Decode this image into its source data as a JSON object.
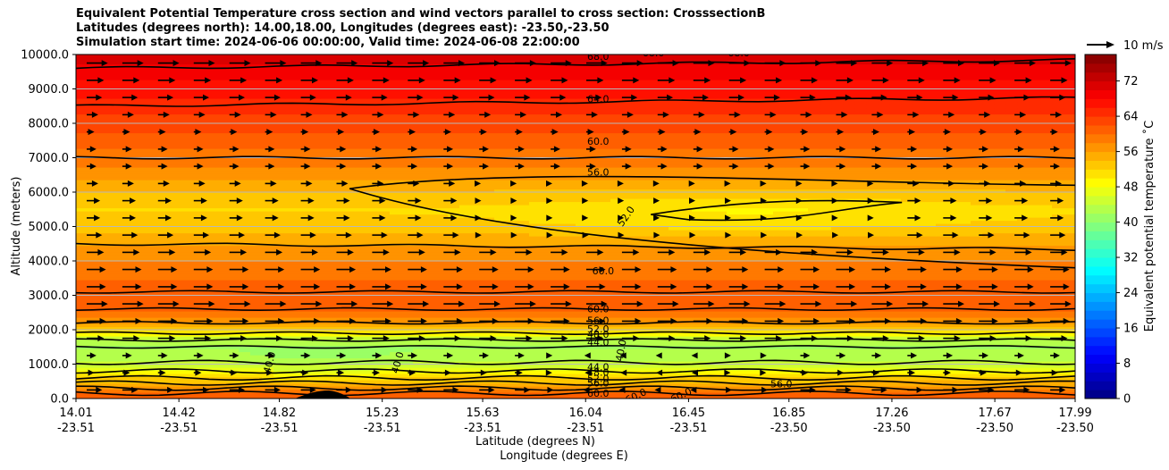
{
  "chart_data": {
    "type": "heatmap",
    "title_lines": [
      "Equivalent Potential Temperature cross section and wind vectors parallel to cross section: CrosssectionB",
      "Latitudes (degrees north): 14.00,18.00, Longitudes (degrees east): -23.50,-23.50",
      "Simulation start time: 2024-06-06 00:00:00, Valid time: 2024-06-08 22:00:00"
    ],
    "ylabel": "Altitude (meters)",
    "xlabel": "Latitude (degrees N)",
    "xlabel2": "Longitude (degrees E)",
    "ylim": [
      0,
      10000
    ],
    "yticks": [
      "0.0",
      "1000.0",
      "2000.0",
      "3000.0",
      "4000.0",
      "5000.0",
      "6000.0",
      "7000.0",
      "8000.0",
      "9000.0",
      "10000.0"
    ],
    "ytick_values": [
      0,
      1000,
      2000,
      3000,
      4000,
      5000,
      6000,
      7000,
      8000,
      9000,
      10000
    ],
    "xticks_lat": [
      "14.01",
      "14.42",
      "14.82",
      "15.23",
      "15.63",
      "16.04",
      "16.45",
      "16.85",
      "17.26",
      "17.67",
      "17.99"
    ],
    "xticks_lon": [
      "-23.51",
      "-23.51",
      "-23.51",
      "-23.51",
      "-23.51",
      "-23.51",
      "-23.51",
      "-23.50",
      "-23.50",
      "-23.50",
      "-23.50"
    ],
    "xtick_values": [
      14.01,
      14.42,
      14.82,
      15.23,
      15.63,
      16.04,
      16.45,
      16.85,
      17.26,
      17.67,
      17.99
    ],
    "xlim": [
      14.01,
      17.99
    ],
    "colorbar": {
      "label": "Equivalent potential temperature ˚C",
      "range": [
        0,
        78
      ],
      "ticks": [
        "0",
        "8",
        "16",
        "24",
        "32",
        "40",
        "48",
        "56",
        "64",
        "72"
      ],
      "tick_values": [
        0,
        8,
        16,
        24,
        32,
        40,
        48,
        56,
        64,
        72
      ]
    },
    "theta_e_profile": {
      "altitude": [
        0,
        300,
        500,
        700,
        900,
        1200,
        1500,
        1700,
        1850,
        2000,
        2200,
        2500,
        3000,
        3500,
        4000,
        4500,
        5000,
        5500,
        6000,
        6500,
        7000,
        7500,
        8000,
        8500,
        9000,
        9500,
        10000
      ],
      "value": [
        62,
        58,
        54,
        50,
        46,
        43,
        42,
        44,
        48,
        52,
        56,
        60,
        61,
        60,
        58,
        56,
        53,
        52,
        54,
        57,
        59,
        61,
        63,
        65,
        67,
        69,
        71
      ]
    },
    "contour_labels": [
      "68.0",
      "68.0",
      "68.0",
      "64.0",
      "60.0",
      "56.0",
      "52.0",
      "60.0",
      "60.0",
      "56.0",
      "52.0",
      "48.0",
      "44.0",
      "40.0",
      "40.0",
      "40.0",
      "44.0",
      "48.0",
      "52.0",
      "56.0",
      "60.0",
      "60.0",
      "60.0",
      "56.0"
    ],
    "wind_reference": {
      "label": "10 m/s",
      "speed": 10
    },
    "wind_speed_profile": {
      "altitude": [
        250,
        750,
        1250,
        1750,
        2250,
        2750,
        3250,
        3750,
        4250,
        4750,
        5250,
        5750,
        6250,
        6750,
        7250,
        7750,
        8250,
        8750,
        9250,
        9750
      ],
      "speed": [
        8,
        4,
        5,
        9,
        10,
        11,
        10,
        10,
        9,
        8,
        7,
        7,
        6,
        5,
        5,
        4,
        6,
        8,
        9,
        11
      ]
    }
  }
}
